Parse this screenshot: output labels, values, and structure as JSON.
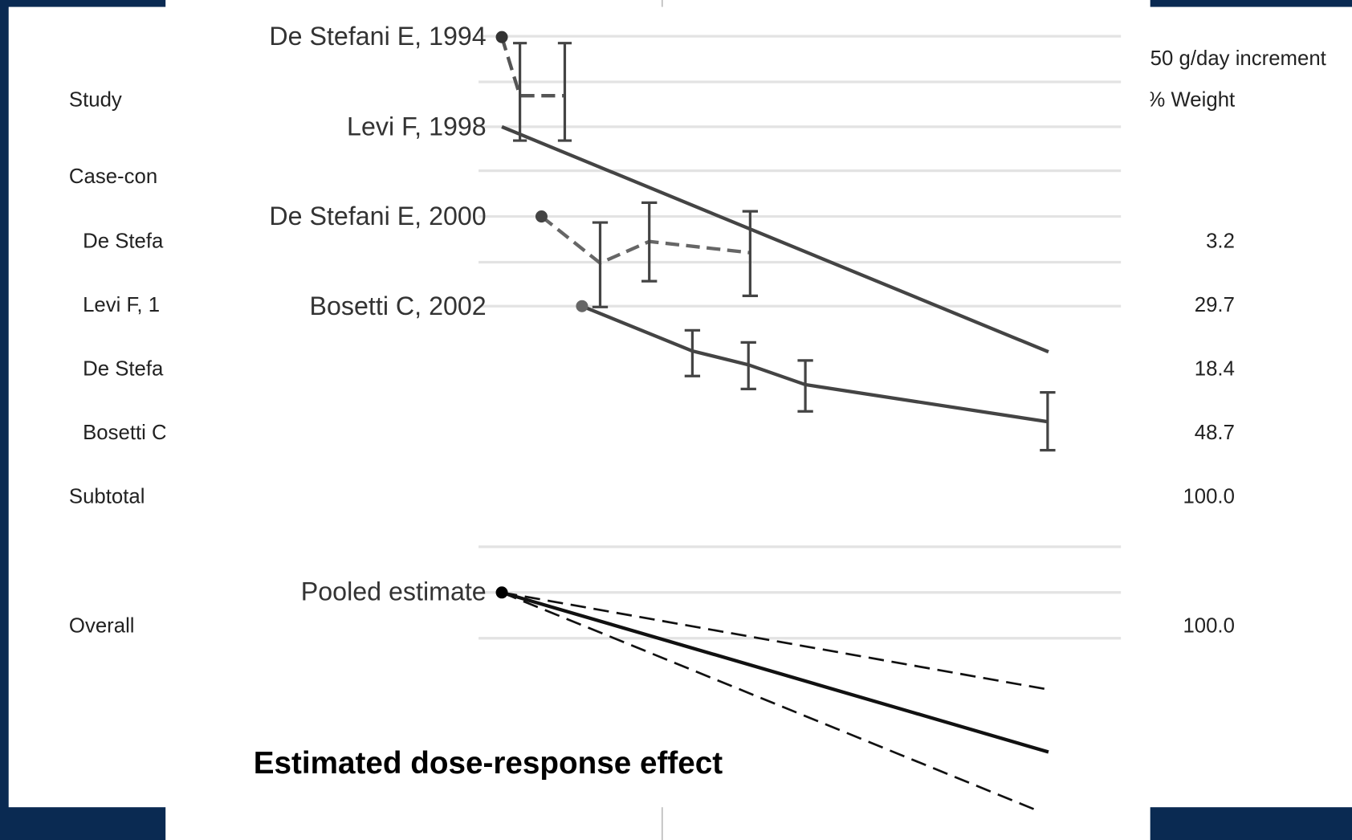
{
  "forest_table": {
    "study_header": "Study",
    "group_label": "Case-con",
    "rows": [
      "De Stefa",
      "Levi F, 1",
      "De Stefa",
      "Bosetti C"
    ],
    "subtotal_label": "Subtotal",
    "overall_label": "Overall",
    "effect_header": "50 g/day increment",
    "weight_header": "% Weight",
    "weights": [
      "3.2",
      "29.7",
      "18.4",
      "48.7"
    ],
    "subtotal_weight": "100.0",
    "overall_weight": "100.0"
  },
  "overlay": {
    "study_labels": [
      "De Stefani E, 1994",
      "Levi F, 1998",
      "De Stefani E, 2000",
      "Bosetti C, 2002"
    ],
    "pooled_label": "Pooled estimate",
    "caption": "Estimated dose-response effect"
  }
}
